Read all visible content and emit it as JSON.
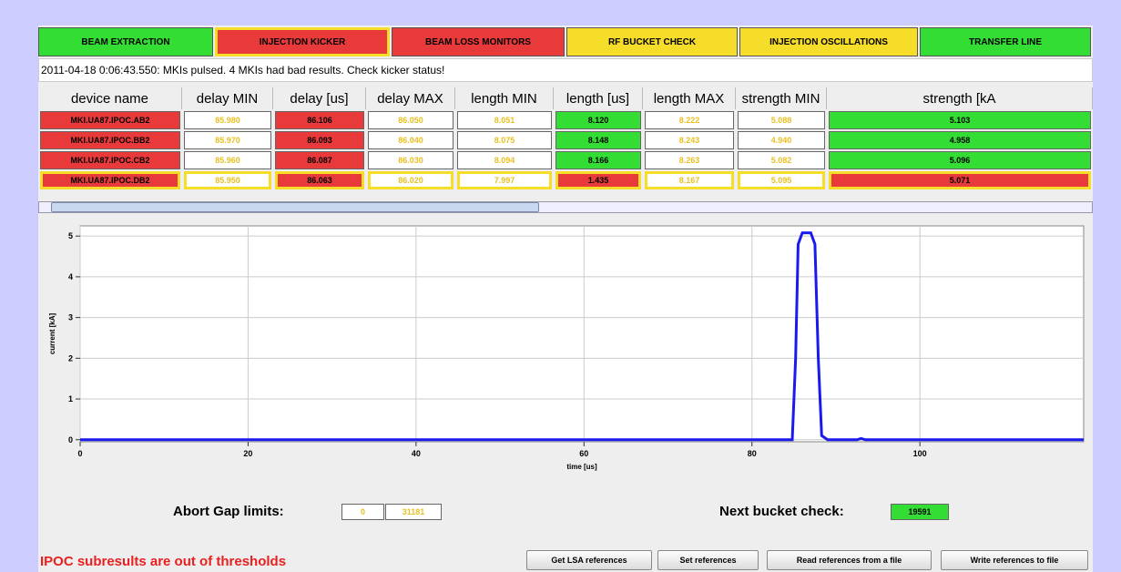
{
  "tabs": [
    {
      "label": "BEAM EXTRACTION",
      "color": "#33dd33"
    },
    {
      "label": "INJECTION KICKER",
      "color": "#e83a3a"
    },
    {
      "label": "BEAM LOSS MONITORS",
      "color": "#e83a3a"
    },
    {
      "label": "RF BUCKET CHECK",
      "color": "#f5dd2a"
    },
    {
      "label": "INJECTION OSCILLATIONS",
      "color": "#f5dd2a"
    },
    {
      "label": "TRANSFER LINE",
      "color": "#33dd33"
    }
  ],
  "status": "2011-04-18 0:06:43.550: MKIs pulsed. 4 MKIs had bad results. Check kicker status!",
  "table": {
    "headers": [
      "device name",
      "delay MIN",
      "delay [us]",
      "delay MAX",
      "length MIN",
      "length [us]",
      "length MAX",
      "strength MIN",
      "strength [kA"
    ],
    "rows": [
      [
        "MKI.UA87.IPOC.AB2",
        "85.980",
        "86.106",
        "86.050",
        "8.051",
        "8.120",
        "8.222",
        "5.088",
        "5.103"
      ],
      [
        "MKI.UA87.IPOC.BB2",
        "85.970",
        "86.093",
        "86.040",
        "8.075",
        "8.148",
        "8.243",
        "4.940",
        "4.958"
      ],
      [
        "MKI.UA87.IPOC.CB2",
        "85.960",
        "86.087",
        "86.030",
        "8.094",
        "8.166",
        "8.263",
        "5.082",
        "5.096"
      ],
      [
        "MKI.UA87.IPOC.DB2",
        "85.950",
        "86.063",
        "86.020",
        "7.997",
        "1.435",
        "8.167",
        "5.095",
        "5.071"
      ]
    ],
    "cell_colors": [
      [
        "#e83a3a",
        "#ffffff",
        "#e83a3a",
        "#ffffff",
        "#ffffff",
        "#33dd33",
        "#ffffff",
        "#ffffff",
        "#33dd33"
      ],
      [
        "#e83a3a",
        "#ffffff",
        "#e83a3a",
        "#ffffff",
        "#ffffff",
        "#33dd33",
        "#ffffff",
        "#ffffff",
        "#33dd33"
      ],
      [
        "#e83a3a",
        "#ffffff",
        "#e83a3a",
        "#ffffff",
        "#ffffff",
        "#33dd33",
        "#ffffff",
        "#ffffff",
        "#33dd33"
      ],
      [
        "#e83a3a",
        "#ffffff",
        "#e83a3a",
        "#ffffff",
        "#ffffff",
        "#e83a3a",
        "#ffffff",
        "#ffffff",
        "#e83a3a"
      ]
    ],
    "selected_row": 3
  },
  "chart_data": {
    "type": "line",
    "xlabel": "time [us]",
    "ylabel": "current [kA]",
    "x": [
      0,
      84.8,
      85.2,
      85.5,
      86,
      87,
      87.5,
      87.9,
      88.3,
      89,
      92.5,
      93,
      93.5,
      119.5
    ],
    "series": [
      {
        "color": "#1a1aee",
        "values": [
          0,
          0,
          2,
          4.8,
          5.08,
          5.08,
          4.8,
          2,
          0.1,
          0,
          0,
          0.03,
          0,
          0
        ]
      }
    ],
    "xlim": [
      0,
      119.5
    ],
    "ylim": [
      -0.05,
      5.25
    ],
    "xticks": [
      0,
      20,
      40,
      60,
      80,
      100
    ],
    "yticks": [
      0,
      1,
      2,
      3,
      4,
      5
    ],
    "grid": true
  },
  "abort_gap": {
    "label": "Abort Gap limits:",
    "values": [
      "0",
      "31181"
    ]
  },
  "next_bucket": {
    "label": "Next bucket check:",
    "value": "19591"
  },
  "message": "IPOC subresults are out of thresholds",
  "buttons": [
    "Get LSA references",
    "Set references",
    "Read references from a file",
    "Write references to file"
  ]
}
